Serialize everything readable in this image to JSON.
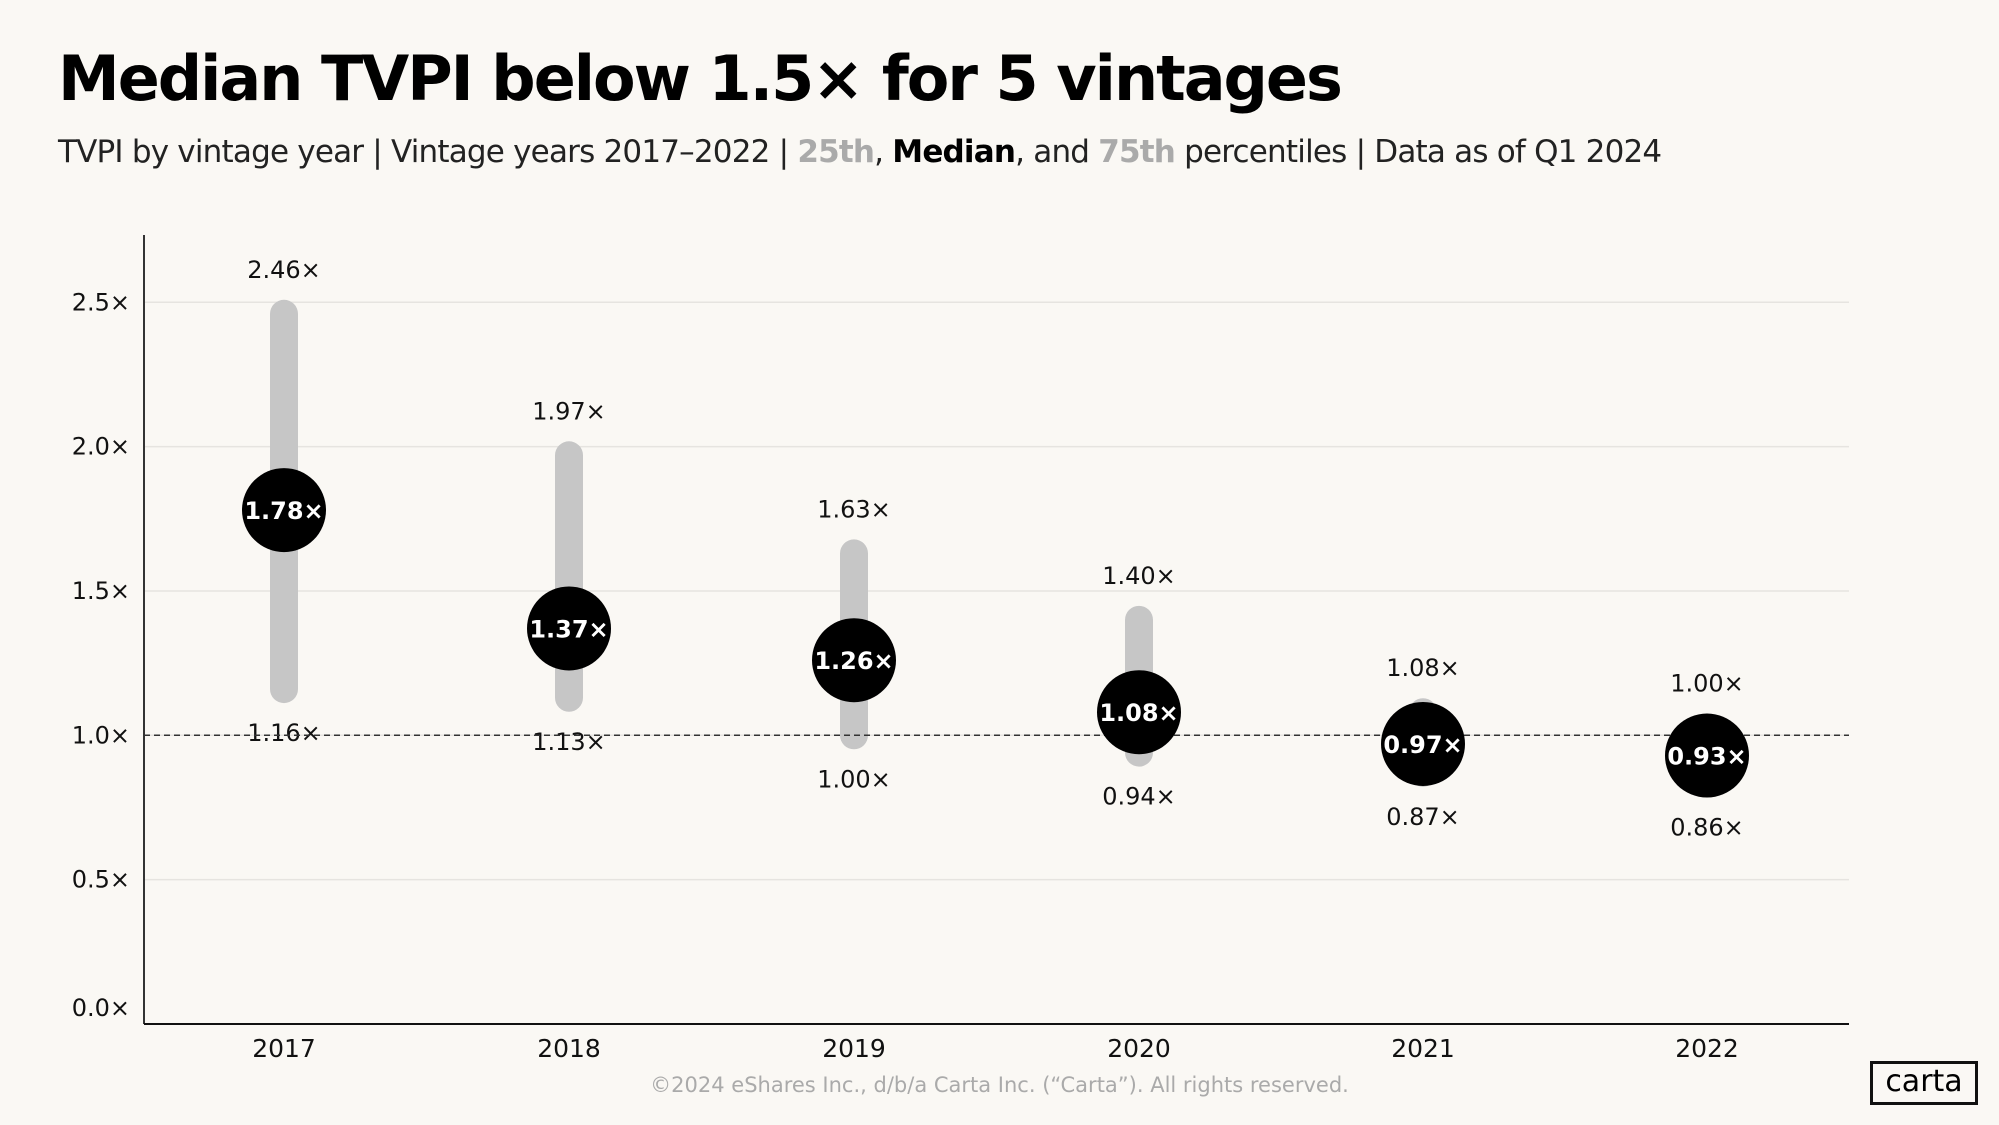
{
  "title": "Median TVPI below 1.5× for 5 vintages",
  "subtitle": {
    "part1": "TVPI by vintage year | Vintage years 2017–2022 | ",
    "p25": "25th",
    "sep1": ", ",
    "median": "Median",
    "sep2": ", and ",
    "p75": "75th",
    "part2": " percentiles | Data as of Q1 2024"
  },
  "footer": "©2024 eShares Inc., d/b/a Carta Inc. (“Carta”). All rights reserved.",
  "logo": "carta",
  "chart_data": {
    "type": "range-dot",
    "categories": [
      "2017",
      "2018",
      "2019",
      "2020",
      "2021",
      "2022"
    ],
    "series": [
      {
        "name": "25th",
        "values": [
          1.16,
          1.13,
          1.0,
          0.94,
          0.87,
          0.86
        ]
      },
      {
        "name": "Median",
        "values": [
          1.78,
          1.37,
          1.26,
          1.08,
          0.97,
          0.93
        ]
      },
      {
        "name": "75th",
        "values": [
          2.46,
          1.97,
          1.63,
          1.4,
          1.08,
          1.0
        ]
      }
    ],
    "ylim": [
      0,
      2.7
    ],
    "yticks": [
      0,
      0.5,
      1.0,
      1.5,
      2.0,
      2.5
    ],
    "ytick_labels": [
      "0.0×",
      "0.5×",
      "1.0×",
      "1.5×",
      "2.0×",
      "2.5×"
    ],
    "value_suffix": "×",
    "reference_line": 1.0,
    "grid": true,
    "colors": {
      "range": "#c6c6c6",
      "median": "#000000",
      "grid": "#e6e4e0"
    }
  }
}
